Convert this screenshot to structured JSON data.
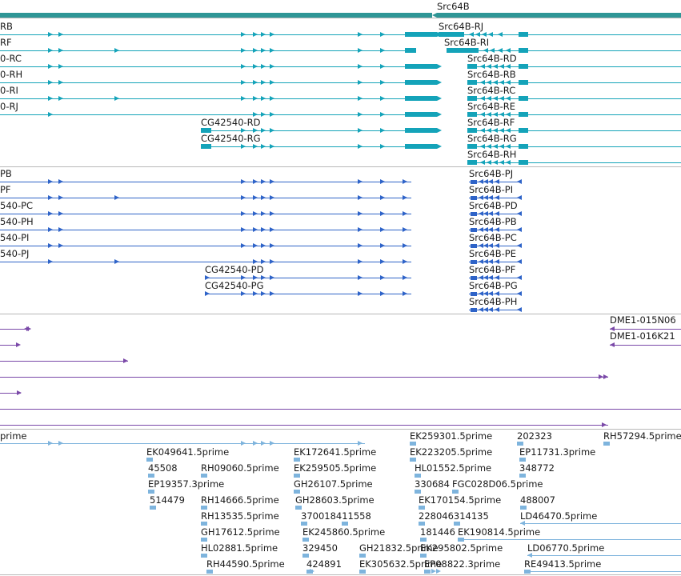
{
  "colors": {
    "gene": "#2f9696",
    "mrna": "#14a3b9",
    "protein": "#2e63c8",
    "cdna": "#7a49a8",
    "est": "#7eb4dd"
  },
  "gene_track": {
    "labels": [
      {
        "id": "g1",
        "text": "Src64B"
      }
    ]
  },
  "mrna_track": {
    "labels": [
      {
        "id": "m1",
        "text": "RB"
      },
      {
        "id": "m2",
        "text": "RF"
      },
      {
        "id": "m3",
        "text": "0-RC"
      },
      {
        "id": "m4",
        "text": "0-RH"
      },
      {
        "id": "m5",
        "text": "0-RI"
      },
      {
        "id": "m6",
        "text": "0-RJ"
      },
      {
        "id": "m7",
        "text": "CG42540-RD"
      },
      {
        "id": "m8",
        "text": "CG42540-RG"
      },
      {
        "id": "m9",
        "text": "Src64B-RJ"
      },
      {
        "id": "m10",
        "text": "Src64B-RI"
      },
      {
        "id": "m11",
        "text": "Src64B-RD"
      },
      {
        "id": "m12",
        "text": "Src64B-RB"
      },
      {
        "id": "m13",
        "text": "Src64B-RC"
      },
      {
        "id": "m14",
        "text": "Src64B-RE"
      },
      {
        "id": "m15",
        "text": "Src64B-RF"
      },
      {
        "id": "m16",
        "text": "Src64B-RG"
      },
      {
        "id": "m17",
        "text": "Src64B-RH"
      }
    ]
  },
  "protein_track": {
    "labels": [
      {
        "id": "p1",
        "text": "PB"
      },
      {
        "id": "p2",
        "text": "PF"
      },
      {
        "id": "p3",
        "text": "540-PC"
      },
      {
        "id": "p4",
        "text": "540-PH"
      },
      {
        "id": "p5",
        "text": "540-PI"
      },
      {
        "id": "p6",
        "text": "540-PJ"
      },
      {
        "id": "p7",
        "text": "CG42540-PD"
      },
      {
        "id": "p8",
        "text": "CG42540-PG"
      },
      {
        "id": "p9",
        "text": "Src64B-PJ"
      },
      {
        "id": "p10",
        "text": "Src64B-PI"
      },
      {
        "id": "p11",
        "text": "Src64B-PD"
      },
      {
        "id": "p12",
        "text": "Src64B-PB"
      },
      {
        "id": "p13",
        "text": "Src64B-PC"
      },
      {
        "id": "p14",
        "text": "Src64B-PE"
      },
      {
        "id": "p15",
        "text": "Src64B-PF"
      },
      {
        "id": "p16",
        "text": "Src64B-PG"
      },
      {
        "id": "p17",
        "text": "Src64B-PH"
      }
    ]
  },
  "cdna_track": {
    "labels": [
      {
        "id": "c1",
        "text": "DME1-015N06"
      },
      {
        "id": "c2",
        "text": "DME1-016K21"
      }
    ]
  },
  "est_track": {
    "labels": [
      {
        "id": "e1",
        "text": "prime"
      },
      {
        "id": "e2",
        "text": "EK259301.5prime"
      },
      {
        "id": "e3",
        "text": "202323"
      },
      {
        "id": "e4",
        "text": "RH57294.5prime"
      },
      {
        "id": "e5",
        "text": "EK049641.5prime"
      },
      {
        "id": "e6",
        "text": "EK172641.5prime"
      },
      {
        "id": "e7",
        "text": "EK223205.5prime"
      },
      {
        "id": "e8",
        "text": "EP11731.3prime"
      },
      {
        "id": "e9",
        "text": "45508"
      },
      {
        "id": "e10",
        "text": "RH09060.5prime"
      },
      {
        "id": "e11",
        "text": "EK259505.5prime"
      },
      {
        "id": "e12",
        "text": "HL01552.5prime"
      },
      {
        "id": "e13",
        "text": "348772"
      },
      {
        "id": "e14",
        "text": "EP19357.3prime"
      },
      {
        "id": "e15",
        "text": "GH26107.5prime"
      },
      {
        "id": "e16",
        "text": "330684"
      },
      {
        "id": "e17",
        "text": "FGC028D06.5prime"
      },
      {
        "id": "e18",
        "text": "514479"
      },
      {
        "id": "e19",
        "text": "RH14666.5prime"
      },
      {
        "id": "e20",
        "text": "GH28603.5prime"
      },
      {
        "id": "e21",
        "text": "EK170154.5prime"
      },
      {
        "id": "e22",
        "text": "488007"
      },
      {
        "id": "e23",
        "text": "RH13535.5prime"
      },
      {
        "id": "e24",
        "text": "370018411558"
      },
      {
        "id": "e25",
        "text": "228046314135"
      },
      {
        "id": "e26",
        "text": "LD46470.5prime"
      },
      {
        "id": "e27",
        "text": "GH17612.5prime"
      },
      {
        "id": "e28",
        "text": "EK245860.5prime"
      },
      {
        "id": "e29",
        "text": "181446"
      },
      {
        "id": "e30",
        "text": "EK190814.5prime"
      },
      {
        "id": "e31",
        "text": "HL02881.5prime"
      },
      {
        "id": "e32",
        "text": "329450"
      },
      {
        "id": "e33",
        "text": "GH21832.5prime"
      },
      {
        "id": "e34",
        "text": "EK295802.5prime"
      },
      {
        "id": "e35",
        "text": "LD06770.5prime"
      },
      {
        "id": "e36",
        "text": "RH44590.5prime"
      },
      {
        "id": "e37",
        "text": "424891"
      },
      {
        "id": "e38",
        "text": "EK305632.5prime"
      },
      {
        "id": "e39",
        "text": "EP08822.3prime"
      },
      {
        "id": "e40",
        "text": "RE49413.5prime"
      }
    ]
  }
}
